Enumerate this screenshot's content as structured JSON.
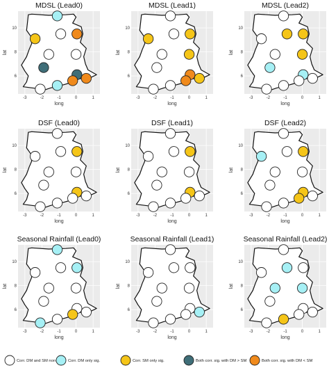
{
  "colors": {
    "panel_bg": "#ebebeb",
    "grid_major": "#ffffff",
    "non_sig": "#ffffff",
    "dm_only": "#a6f0f5",
    "sm_only": "#f5c518",
    "both_dm_gt_sm": "#3f6e78",
    "both_dm_lt_sm": "#f08a1c"
  },
  "legend": {
    "items": [
      {
        "key": "non_sig",
        "label": "Corr. DM and SM non sig."
      },
      {
        "key": "dm_only",
        "label": "Corr. DM only sig."
      },
      {
        "key": "sm_only",
        "label": "Corr. SM only sig."
      },
      {
        "key": "both_dm_gt_sm",
        "label": "Both corr. sig. with DM > SM"
      },
      {
        "key": "both_dm_lt_sm",
        "label": "Both corr. sig. with DM < SM"
      }
    ]
  },
  "chart_data": {
    "type": "scatter",
    "description_axes": {
      "xlabel": "long",
      "ylabel": "lat",
      "xlim": [
        -3.4,
        1.4
      ],
      "ylim": [
        4.5,
        11.4
      ],
      "xticks": [
        -3,
        -2,
        -1,
        0,
        1
      ],
      "yticks": [
        6,
        8,
        10
      ],
      "grid": true
    },
    "stations": [
      {
        "id": 1,
        "lon": -1.1,
        "lat": 11.0
      },
      {
        "id": 2,
        "lon": -2.4,
        "lat": 9.1
      },
      {
        "id": 3,
        "lon": -0.9,
        "lat": 9.5
      },
      {
        "id": 4,
        "lon": 0.05,
        "lat": 9.5
      },
      {
        "id": 5,
        "lon": -1.6,
        "lat": 7.8
      },
      {
        "id": 6,
        "lon": 0.0,
        "lat": 7.8
      },
      {
        "id": 7,
        "lon": -1.9,
        "lat": 6.7
      },
      {
        "id": 8,
        "lon": 0.05,
        "lat": 6.1
      },
      {
        "id": 9,
        "lon": -0.2,
        "lat": 5.6
      },
      {
        "id": 10,
        "lon": 0.6,
        "lat": 5.8
      },
      {
        "id": 11,
        "lon": -1.1,
        "lat": 5.2
      },
      {
        "id": 12,
        "lon": -2.1,
        "lat": 4.9
      }
    ],
    "panels": [
      {
        "title": "MDSL (Lead0)",
        "status": [
          "dm_only",
          "sm_only",
          "non_sig",
          "both_dm_lt_sm",
          "non_sig",
          "non_sig",
          "both_dm_gt_sm",
          "both_dm_gt_sm",
          "both_dm_lt_sm",
          "both_dm_lt_sm",
          "dm_only",
          "non_sig"
        ]
      },
      {
        "title": "MDSL (Lead1)",
        "status": [
          "non_sig",
          "sm_only",
          "non_sig",
          "sm_only",
          "non_sig",
          "sm_only",
          "non_sig",
          "both_dm_lt_sm",
          "both_dm_lt_sm",
          "sm_only",
          "non_sig",
          "non_sig"
        ]
      },
      {
        "title": "MDSL (Lead2)",
        "status": [
          "non_sig",
          "non_sig",
          "sm_only",
          "sm_only",
          "non_sig",
          "sm_only",
          "dm_only",
          "dm_only",
          "non_sig",
          "non_sig",
          "non_sig",
          "non_sig"
        ]
      },
      {
        "title": "DSF (Lead0)",
        "status": [
          "non_sig",
          "non_sig",
          "non_sig",
          "sm_only",
          "non_sig",
          "non_sig",
          "non_sig",
          "sm_only",
          "non_sig",
          "non_sig",
          "non_sig",
          "non_sig"
        ]
      },
      {
        "title": "DSF (Lead1)",
        "status": [
          "non_sig",
          "non_sig",
          "non_sig",
          "sm_only",
          "non_sig",
          "non_sig",
          "non_sig",
          "sm_only",
          "non_sig",
          "non_sig",
          "non_sig",
          "non_sig"
        ]
      },
      {
        "title": "DSF (Lead2)",
        "status": [
          "non_sig",
          "dm_only",
          "non_sig",
          "sm_only",
          "non_sig",
          "non_sig",
          "non_sig",
          "sm_only",
          "sm_only",
          "non_sig",
          "non_sig",
          "non_sig"
        ]
      },
      {
        "title": "Seasonal Rainfall (Lead0)",
        "status": [
          "dm_only",
          "non_sig",
          "non_sig",
          "dm_only",
          "non_sig",
          "non_sig",
          "non_sig",
          "non_sig",
          "sm_only",
          "non_sig",
          "non_sig",
          "dm_only"
        ]
      },
      {
        "title": "Seasonal Rainfall (Lead1)",
        "status": [
          "non_sig",
          "non_sig",
          "non_sig",
          "non_sig",
          "non_sig",
          "non_sig",
          "non_sig",
          "non_sig",
          "non_sig",
          "dm_only",
          "non_sig",
          "non_sig"
        ]
      },
      {
        "title": "Seasonal Rainfall (Lead2)",
        "status": [
          "non_sig",
          "non_sig",
          "dm_only",
          "non_sig",
          "dm_only",
          "dm_only",
          "non_sig",
          "non_sig",
          "non_sig",
          "non_sig",
          "sm_only",
          "non_sig"
        ]
      }
    ]
  }
}
